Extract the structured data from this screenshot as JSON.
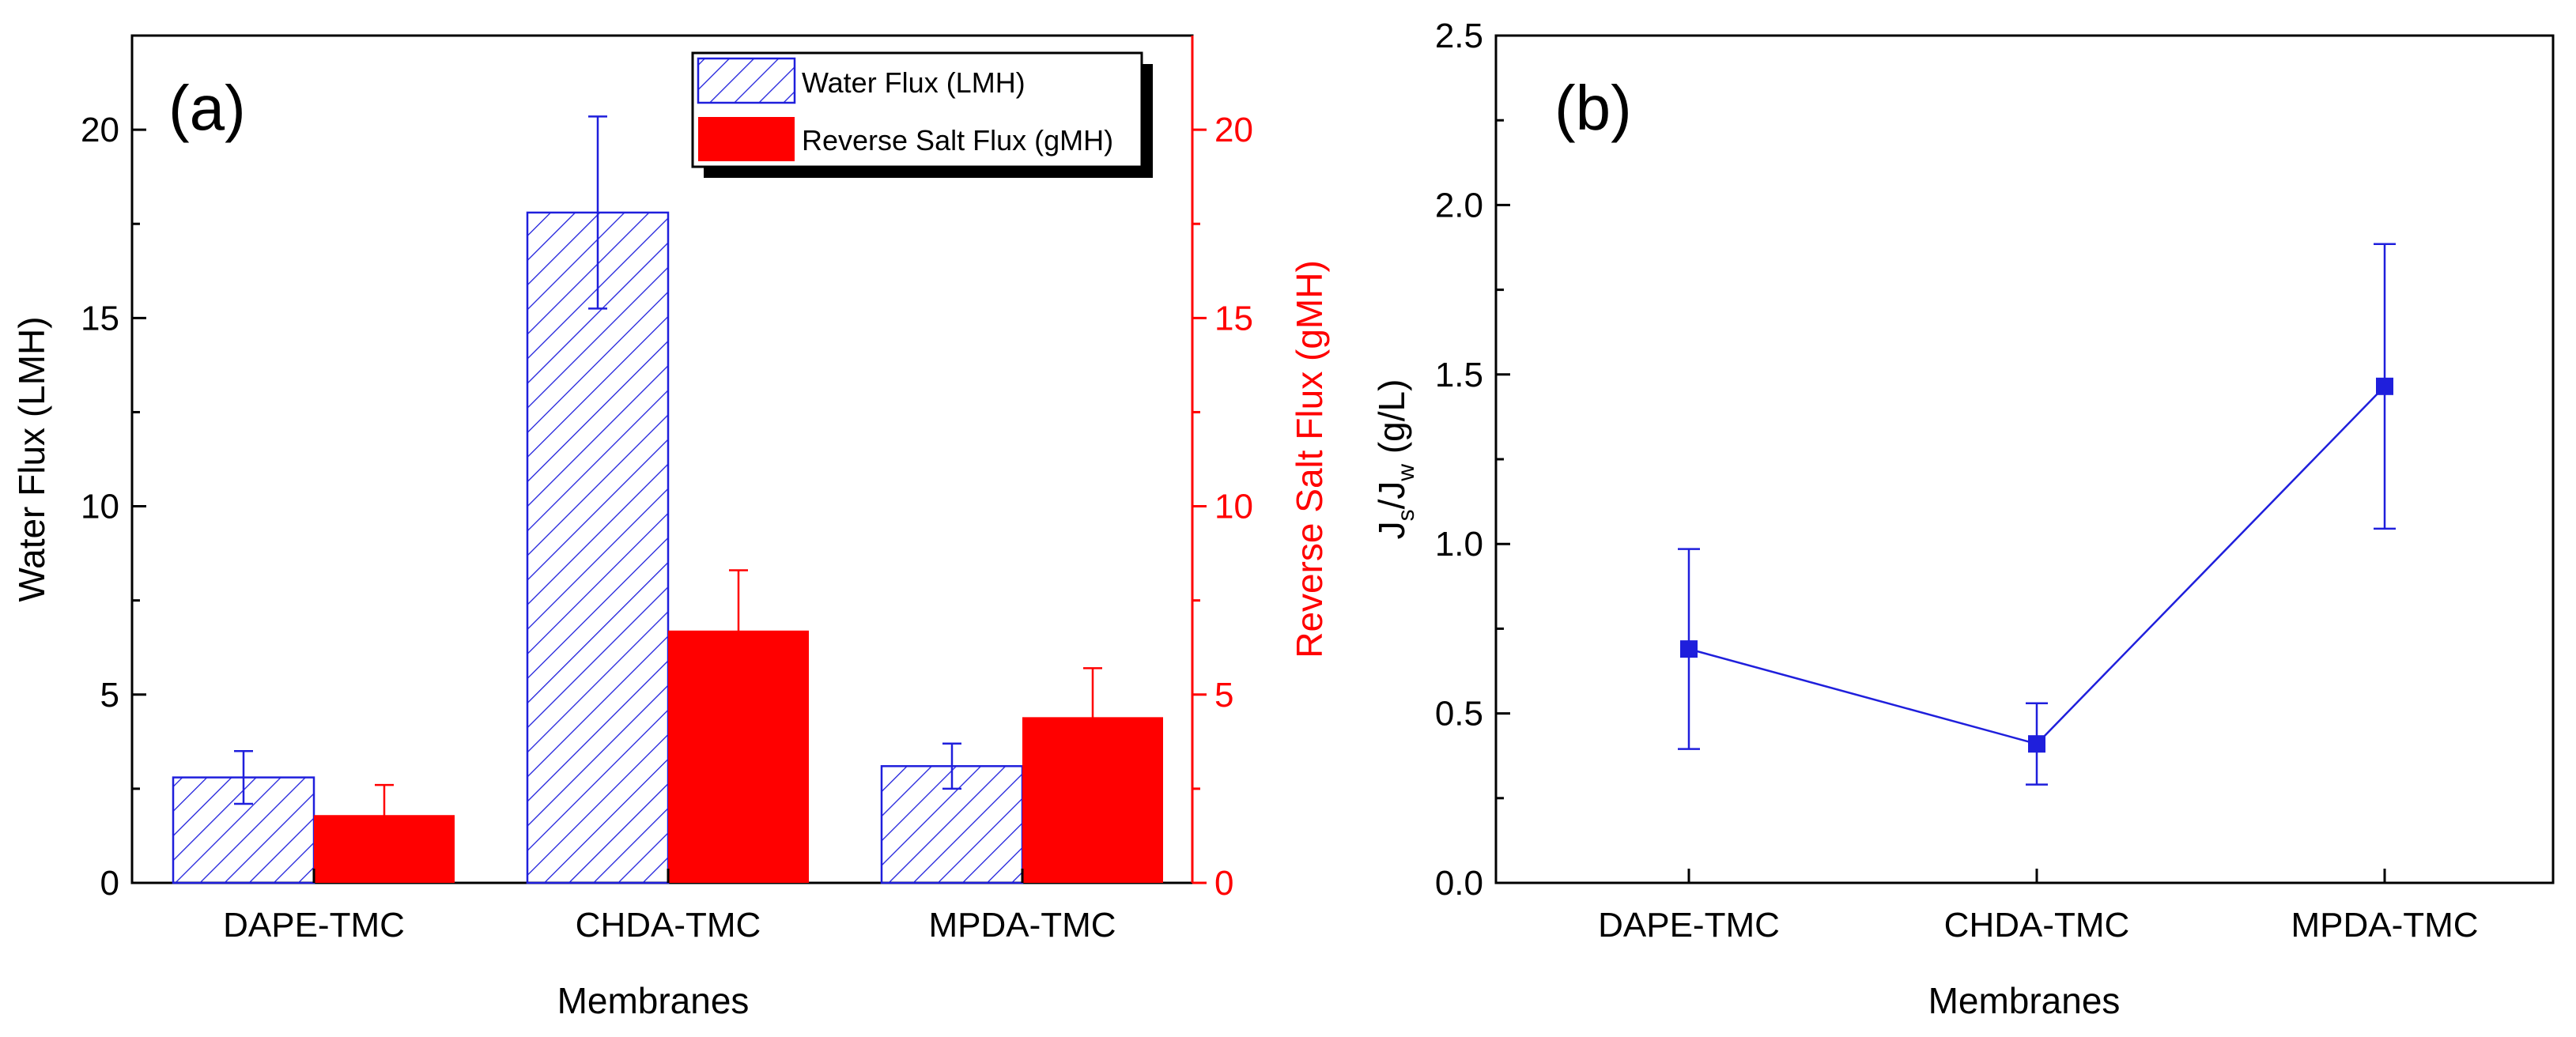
{
  "chart_data": [
    {
      "type": "bar",
      "panel_label": "(a)",
      "categories": [
        "DAPE-TMC",
        "CHDA-TMC",
        "MPDA-TMC"
      ],
      "xlabel": "Membranes",
      "ylabel": "Water Flux (LMH)",
      "ylabel_right": "Reverse Salt Flux (gMH)",
      "ylim": [
        0,
        22.5
      ],
      "ylim_right": [
        0,
        22.5
      ],
      "yticks": [
        0,
        5,
        10,
        15,
        20
      ],
      "yticks_right": [
        0,
        5,
        10,
        15,
        20
      ],
      "legend_position": "top-right",
      "series": [
        {
          "name": "Water Flux (LMH)",
          "axis": "left",
          "style": "hatched",
          "color": "#1f1fdc",
          "values": [
            2.8,
            17.8,
            3.1
          ],
          "errors": [
            0.7,
            2.55,
            0.6
          ]
        },
        {
          "name": "Reverse Salt Flux (gMH)",
          "axis": "right",
          "style": "solid",
          "color": "#ff0000",
          "values": [
            1.8,
            6.7,
            4.4
          ],
          "errors": [
            0.8,
            1.6,
            1.3
          ]
        }
      ],
      "grid": false
    },
    {
      "type": "line",
      "panel_label": "(b)",
      "categories": [
        "DAPE-TMC",
        "CHDA-TMC",
        "MPDA-TMC"
      ],
      "xlabel": "Membranes",
      "ylabel_main": "J",
      "ylabel_sub1": "s",
      "ylabel_mid": "/J",
      "ylabel_sub2": "w",
      "ylabel_unit": " (g/L)",
      "ylim": [
        0,
        2.5
      ],
      "yticks": [
        "0.0",
        "0.5",
        "1.0",
        "1.5",
        "2.0",
        "2.5"
      ],
      "series": [
        {
          "color": "#1f1fdc",
          "values": [
            0.69,
            0.41,
            1.465
          ],
          "errors": [
            0.295,
            0.12,
            0.42
          ]
        }
      ],
      "grid": false
    }
  ]
}
